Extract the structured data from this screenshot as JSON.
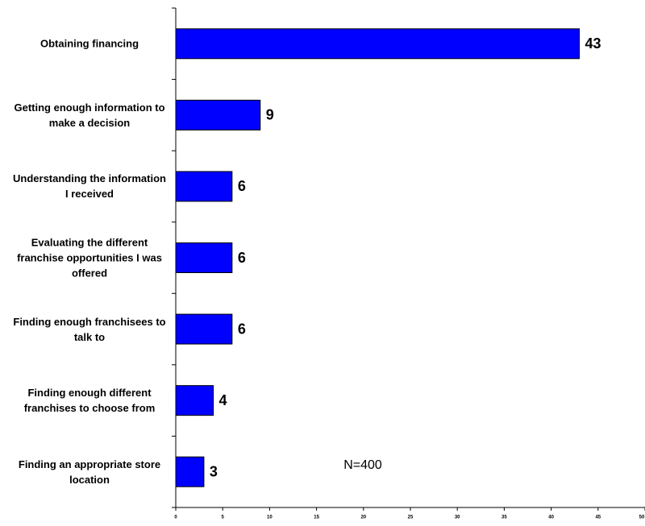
{
  "chart_data": {
    "type": "bar",
    "orientation": "horizontal",
    "categories": [
      "Obtaining financing",
      "Getting enough information to make a decision",
      "Understanding the information I received",
      "Evaluating the different franchise opportunities I was offered",
      "Finding enough franchisees to talk to",
      "Finding enough different franchises to choose from",
      "Finding an appropriate store location"
    ],
    "values": [
      43,
      9,
      6,
      6,
      6,
      4,
      3
    ],
    "color": "#0000ff",
    "xlim": [
      0,
      50
    ],
    "xticks": [
      0,
      5,
      10,
      15,
      20,
      25,
      30,
      35,
      40,
      45,
      50
    ],
    "annotation": "N=400"
  }
}
